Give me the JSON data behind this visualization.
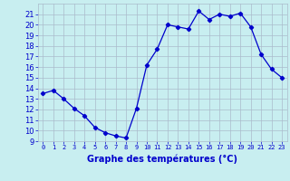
{
  "hours": [
    0,
    1,
    2,
    3,
    4,
    5,
    6,
    7,
    8,
    9,
    10,
    11,
    12,
    13,
    14,
    15,
    16,
    17,
    18,
    19,
    20,
    21,
    22,
    23
  ],
  "temps": [
    13.5,
    13.8,
    13.0,
    12.1,
    11.4,
    10.3,
    9.8,
    9.5,
    9.3,
    12.1,
    16.2,
    17.7,
    20.0,
    19.8,
    19.6,
    21.3,
    20.5,
    21.0,
    20.8,
    21.1,
    19.8,
    17.2,
    15.8,
    15.0
  ],
  "line_color": "#0000cc",
  "marker": "D",
  "marker_size": 2.2,
  "bg_color": "#c8eef0",
  "grid_color": "#aabbcc",
  "xlabel": "Graphe des températures (°C)",
  "tick_color": "#0000cc",
  "ylim": [
    9,
    22
  ],
  "xlim": [
    -0.5,
    23.5
  ],
  "yticks": [
    9,
    10,
    11,
    12,
    13,
    14,
    15,
    16,
    17,
    18,
    19,
    20,
    21
  ],
  "xticks": [
    0,
    1,
    2,
    3,
    4,
    5,
    6,
    7,
    8,
    9,
    10,
    11,
    12,
    13,
    14,
    15,
    16,
    17,
    18,
    19,
    20,
    21,
    22,
    23
  ]
}
